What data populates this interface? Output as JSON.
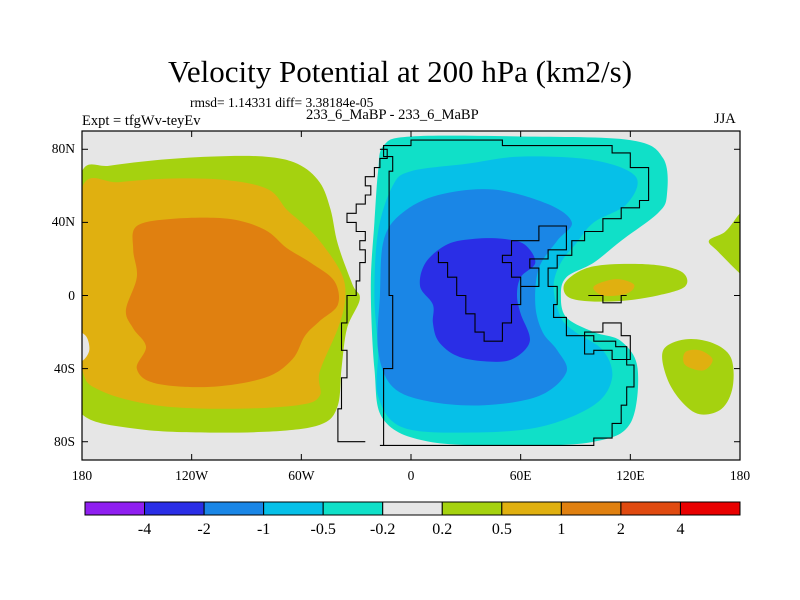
{
  "header": {
    "title": "Velocity Potential at 200 hPa (km2/s)",
    "stats": "rmsd= 1.14331 diff= 3.38184e-05",
    "experiment": "Expt = tfgWv-teyEv",
    "center_label": "233_6_MaBP - 233_6_MaBP",
    "season": "JJA"
  },
  "chart_data": {
    "type": "heatmap",
    "title": "Velocity Potential at 200 hPa (km2/s)",
    "xlabel": "",
    "ylabel": "",
    "xlim": [
      -180,
      180
    ],
    "ylim": [
      -90,
      90
    ],
    "x_ticks": [
      {
        "value": -180,
        "label": "180"
      },
      {
        "value": -120,
        "label": "120W"
      },
      {
        "value": -60,
        "label": "60W"
      },
      {
        "value": 0,
        "label": "0"
      },
      {
        "value": 60,
        "label": "60E"
      },
      {
        "value": 120,
        "label": "120E"
      },
      {
        "value": 180,
        "label": "180"
      }
    ],
    "y_ticks": [
      {
        "value": 80,
        "label": "80N"
      },
      {
        "value": 40,
        "label": "40N"
      },
      {
        "value": 0,
        "label": "0"
      },
      {
        "value": -40,
        "label": "40S"
      },
      {
        "value": -80,
        "label": "80S"
      }
    ],
    "colorbar": {
      "levels": [
        -4,
        -2,
        -1,
        -0.5,
        -0.2,
        0.2,
        0.5,
        1,
        2,
        4
      ],
      "labels": [
        "-4",
        "-2",
        "-1",
        "-0.5",
        "-0.2",
        "0.2",
        "0.5",
        "1",
        "2",
        "4"
      ],
      "colors": [
        "#8f1ff0",
        "#2a2ee6",
        "#1a86e6",
        "#06c0e8",
        "#10e0c8",
        "#e6e6e6",
        "#a5d20f",
        "#e0b010",
        "#e08010",
        "#e04a10",
        "#e80000"
      ]
    },
    "contours": [
      {
        "name": "west-positive-outer",
        "level": 0.2,
        "color": "#a5d20f",
        "lonlat": [
          [
            -180,
            68
          ],
          [
            -165,
            71
          ],
          [
            -140,
            74
          ],
          [
            -110,
            76
          ],
          [
            -80,
            76
          ],
          [
            -62,
            72
          ],
          [
            -50,
            62
          ],
          [
            -44,
            47
          ],
          [
            -40,
            28
          ],
          [
            -32,
            6
          ],
          [
            -28,
            -2
          ],
          [
            -35,
            -18
          ],
          [
            -38,
            -40
          ],
          [
            -40,
            -60
          ],
          [
            -48,
            -70
          ],
          [
            -70,
            -74
          ],
          [
            -110,
            -75
          ],
          [
            -150,
            -73
          ],
          [
            -180,
            -65
          ],
          [
            -185,
            -40
          ],
          [
            -185,
            30
          ]
        ]
      },
      {
        "name": "west-positive-half",
        "level": 0.5,
        "color": "#e0b010",
        "lonlat": [
          [
            -180,
            59
          ],
          [
            -160,
            62
          ],
          [
            -130,
            64
          ],
          [
            -100,
            63
          ],
          [
            -78,
            58
          ],
          [
            -68,
            47
          ],
          [
            -60,
            40
          ],
          [
            -50,
            30
          ],
          [
            -38,
            12
          ],
          [
            -36,
            -2
          ],
          [
            -40,
            -18
          ],
          [
            -50,
            -42
          ],
          [
            -50,
            -55
          ],
          [
            -62,
            -60
          ],
          [
            -100,
            -62
          ],
          [
            -140,
            -60
          ],
          [
            -170,
            -52
          ],
          [
            -180,
            -40
          ],
          [
            -183,
            0
          ]
        ]
      },
      {
        "name": "west-positive-one",
        "level": 1,
        "color": "#e08010",
        "lonlat": [
          [
            -150,
            38
          ],
          [
            -130,
            42
          ],
          [
            -100,
            42
          ],
          [
            -80,
            36
          ],
          [
            -68,
            26
          ],
          [
            -55,
            18
          ],
          [
            -42,
            8
          ],
          [
            -40,
            -5
          ],
          [
            -50,
            -14
          ],
          [
            -58,
            -22
          ],
          [
            -65,
            -35
          ],
          [
            -80,
            -45
          ],
          [
            -110,
            -50
          ],
          [
            -140,
            -48
          ],
          [
            -150,
            -40
          ],
          [
            -145,
            -28
          ],
          [
            -152,
            -18
          ],
          [
            -156,
            -8
          ],
          [
            -150,
            10
          ],
          [
            -152,
            25
          ]
        ]
      },
      {
        "name": "east-negative-outer",
        "level": -0.2,
        "color": "#10e0c8",
        "lonlat": [
          [
            -18,
            68
          ],
          [
            -20,
            40
          ],
          [
            -22,
            5
          ],
          [
            -20,
            -40
          ],
          [
            -15,
            -68
          ],
          [
            10,
            -80
          ],
          [
            60,
            -82
          ],
          [
            100,
            -80
          ],
          [
            120,
            -70
          ],
          [
            124,
            -40
          ],
          [
            115,
            -25
          ],
          [
            100,
            -20
          ],
          [
            85,
            -12
          ],
          [
            82,
            0
          ],
          [
            85,
            10
          ],
          [
            100,
            18
          ],
          [
            115,
            30
          ],
          [
            135,
            45
          ],
          [
            140,
            55
          ],
          [
            138,
            75
          ],
          [
            120,
            85
          ],
          [
            60,
            87
          ],
          [
            0,
            87
          ],
          [
            -15,
            82
          ]
        ]
      },
      {
        "name": "east-negative-half",
        "level": -0.5,
        "color": "#06c0e8",
        "lonlat": [
          [
            -10,
            60
          ],
          [
            0,
            68
          ],
          [
            30,
            72
          ],
          [
            60,
            76
          ],
          [
            100,
            74
          ],
          [
            123,
            65
          ],
          [
            118,
            50
          ],
          [
            100,
            40
          ],
          [
            90,
            28
          ],
          [
            82,
            18
          ],
          [
            78,
            5
          ],
          [
            82,
            -12
          ],
          [
            90,
            -20
          ],
          [
            105,
            -30
          ],
          [
            110,
            -45
          ],
          [
            100,
            -60
          ],
          [
            70,
            -72
          ],
          [
            30,
            -75
          ],
          [
            -5,
            -72
          ],
          [
            -18,
            -55
          ],
          [
            -18,
            -30
          ],
          [
            -20,
            0
          ],
          [
            -18,
            35
          ]
        ]
      },
      {
        "name": "east-negative-one",
        "level": -1,
        "color": "#1a86e6",
        "lonlat": [
          [
            -5,
            45
          ],
          [
            15,
            55
          ],
          [
            45,
            58
          ],
          [
            75,
            50
          ],
          [
            88,
            40
          ],
          [
            80,
            30
          ],
          [
            70,
            15
          ],
          [
            68,
            -5
          ],
          [
            72,
            -20
          ],
          [
            80,
            -30
          ],
          [
            85,
            -42
          ],
          [
            70,
            -55
          ],
          [
            40,
            -60
          ],
          [
            10,
            -58
          ],
          [
            -10,
            -50
          ],
          [
            -18,
            -30
          ],
          [
            -17,
            0
          ],
          [
            -15,
            30
          ]
        ]
      },
      {
        "name": "east-negative-two",
        "level": -2,
        "color": "#2a2ee6",
        "lonlat": [
          [
            8,
            18
          ],
          [
            20,
            28
          ],
          [
            35,
            31
          ],
          [
            50,
            31
          ],
          [
            62,
            28
          ],
          [
            68,
            18
          ],
          [
            60,
            10
          ],
          [
            58,
            0
          ],
          [
            60,
            -10
          ],
          [
            65,
            -25
          ],
          [
            55,
            -35
          ],
          [
            40,
            -36
          ],
          [
            25,
            -33
          ],
          [
            15,
            -25
          ],
          [
            12,
            -15
          ],
          [
            12,
            -5
          ],
          [
            5,
            5
          ]
        ]
      },
      {
        "name": "pacific-positive-small",
        "level": 0.5,
        "color": "#a5d20f",
        "lonlat": [
          [
            85,
            8
          ],
          [
            100,
            16
          ],
          [
            130,
            17
          ],
          [
            148,
            13
          ],
          [
            150,
            5
          ],
          [
            135,
            0
          ],
          [
            115,
            -3
          ],
          [
            95,
            -3
          ],
          [
            85,
            0
          ]
        ]
      },
      {
        "name": "pacific-positive-inner",
        "level": 1,
        "color": "#e0b010",
        "lonlat": [
          [
            100,
            5
          ],
          [
            112,
            9
          ],
          [
            122,
            6
          ],
          [
            118,
            1
          ],
          [
            105,
            0
          ]
        ]
      },
      {
        "name": "south-pacific-positive",
        "level": 0.5,
        "color": "#a5d20f",
        "lonlat": [
          [
            138,
            -30
          ],
          [
            150,
            -24
          ],
          [
            165,
            -26
          ],
          [
            175,
            -34
          ],
          [
            176,
            -50
          ],
          [
            170,
            -62
          ],
          [
            158,
            -65
          ],
          [
            148,
            -58
          ],
          [
            140,
            -45
          ]
        ]
      },
      {
        "name": "south-pacific-inner",
        "level": 1,
        "color": "#e0b010",
        "lonlat": [
          [
            150,
            -31
          ],
          [
            158,
            -30
          ],
          [
            165,
            -35
          ],
          [
            160,
            -41
          ],
          [
            150,
            -38
          ]
        ]
      },
      {
        "name": "east-edge-positive",
        "level": 0.2,
        "color": "#a5d20f",
        "lonlat": [
          [
            188,
            53
          ],
          [
            180,
            45
          ],
          [
            172,
            35
          ],
          [
            163,
            30
          ],
          [
            168,
            24
          ],
          [
            180,
            12
          ],
          [
            188,
            5
          ]
        ]
      },
      {
        "name": "west-edge-negative",
        "level": -0.2,
        "color": "#e6e6e6",
        "lonlat": [
          [
            -185,
            -20
          ],
          [
            -178,
            -22
          ],
          [
            -176,
            -30
          ],
          [
            -180,
            -36
          ],
          [
            -185,
            -36
          ]
        ]
      }
    ]
  }
}
